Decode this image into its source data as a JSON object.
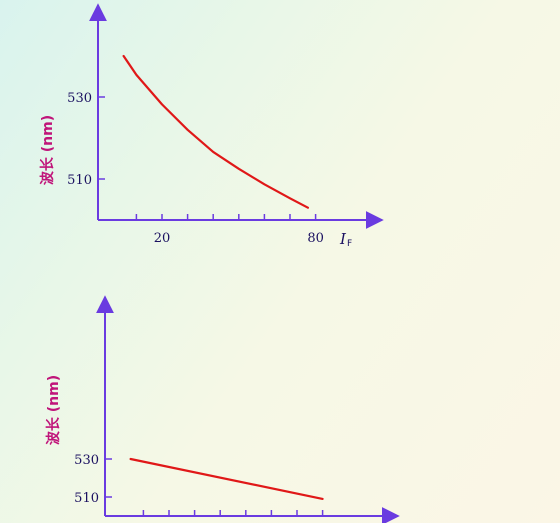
{
  "colors": {
    "axis": "#6a3be0",
    "curve": "#e01818",
    "label": "#c0157a",
    "tick_text": "#1a1060"
  },
  "chart_data": [
    {
      "type": "line",
      "ylabel": "波长 (nm)",
      "xlabel": "I",
      "xlabel_sub": "F",
      "xlim": [
        -5,
        100
      ],
      "ylim": [
        500,
        555
      ],
      "x_ticks": [
        20,
        80
      ],
      "y_ticks": [
        530,
        510
      ],
      "x_minor_ticks": [
        10,
        20,
        30,
        40,
        50,
        60,
        70,
        80
      ],
      "series": [
        {
          "x": [
            5,
            10,
            20,
            30,
            40,
            50,
            60,
            70,
            77
          ],
          "y": [
            540,
            535.4,
            528.2,
            522,
            516.6,
            512.5,
            508.7,
            505.3,
            503
          ]
        }
      ]
    },
    {
      "type": "line",
      "ylabel": "波长 (nm)",
      "xlim": [
        -5,
        100
      ],
      "ylim": [
        500,
        555
      ],
      "y_ticks": [
        530,
        510
      ],
      "x_minor_ticks": [
        10,
        20,
        30,
        40,
        50,
        60,
        70,
        80
      ],
      "series": [
        {
          "x": [
            5,
            80
          ],
          "y": [
            530,
            509
          ]
        }
      ]
    }
  ]
}
